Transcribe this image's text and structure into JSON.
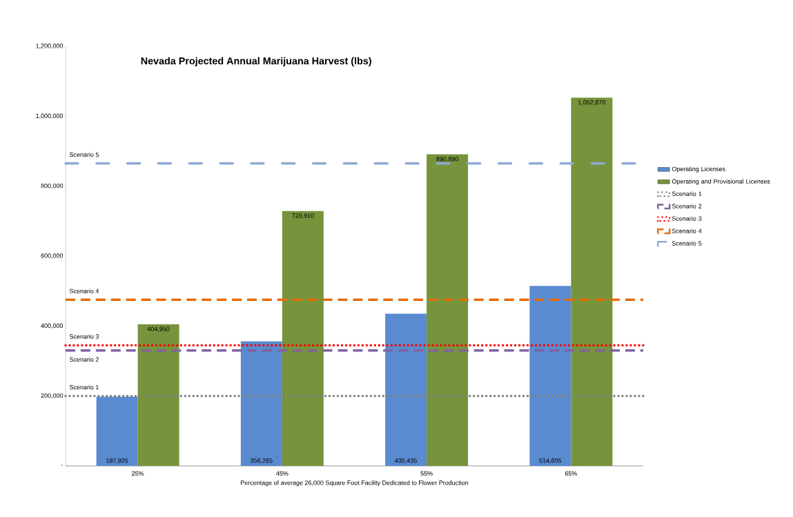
{
  "chart_data": {
    "type": "bar",
    "title": "Nevada Projected Annual Marijuana Harvest (lbs)",
    "xlabel": "Percentage of average 26,000 Square Foot Facility Dedicated to Flower Production",
    "categories": [
      "25%",
      "45%",
      "55%",
      "65%"
    ],
    "series": [
      {
        "name": "Operating Licenses",
        "color": "#5a8bd0",
        "values": [
          197925,
          356265,
          435435,
          514605
        ],
        "value_labels": [
          "197,925",
          "356,265",
          "435,435",
          "514,605"
        ]
      },
      {
        "name": "Operating and Provisional Licenses",
        "color": "#77933c",
        "values": [
          404950,
          728910,
          890890,
          1052870
        ],
        "value_labels": [
          "404,950",
          "728,910",
          "890,890",
          "1,052,870"
        ]
      }
    ],
    "ylim": [
      0,
      1200000
    ],
    "yticks": [
      {
        "value": 0,
        "label": "-"
      },
      {
        "value": 200000,
        "label": "200,000"
      },
      {
        "value": 400000,
        "label": "400,000"
      },
      {
        "value": 600000,
        "label": "600,000"
      },
      {
        "value": 800000,
        "label": "800,000"
      },
      {
        "value": 1000000,
        "label": "1,000,000"
      },
      {
        "value": 1200000,
        "label": "1,200,000"
      }
    ],
    "ref_lines": [
      {
        "axis": "y",
        "value": 200000,
        "label": "Scenario 1",
        "color": "#808080",
        "line_style": "dotted"
      },
      {
        "axis": "y",
        "value": 330000,
        "label": "Scenario 2",
        "color": "#7f63a1",
        "line_style": "dashed"
      },
      {
        "axis": "y",
        "value": 345000,
        "label": "Scenario 3",
        "color": "#ff0000",
        "line_style": "dotted"
      },
      {
        "axis": "y",
        "value": 475000,
        "label": "Scenario 4",
        "color": "#e46c0a",
        "line_style": "dashed"
      },
      {
        "axis": "y",
        "value": 865000,
        "label": "Scenario 5",
        "color": "#8eaad6",
        "line_style": "dashdot"
      }
    ],
    "legend": "right",
    "grid": false
  }
}
